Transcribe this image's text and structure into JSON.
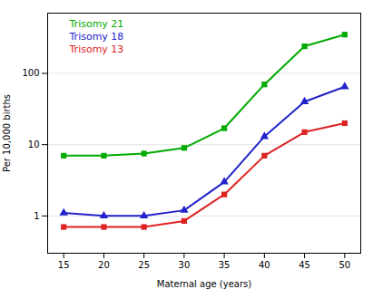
{
  "chart_data": {
    "type": "line",
    "x": [
      15,
      20,
      25,
      30,
      35,
      40,
      45,
      50
    ],
    "series": [
      {
        "name": "Trisomy 21",
        "color": "#00aa00",
        "marker": "square",
        "values": [
          7,
          7,
          7.5,
          9,
          17,
          70,
          240,
          350
        ]
      },
      {
        "name": "Trisomy 18",
        "color": "#2222cc",
        "marker": "triangle",
        "values": [
          1.1,
          1.0,
          1.0,
          1.2,
          3.0,
          13,
          40,
          65
        ]
      },
      {
        "name": "Trisomy 13",
        "color": "#dd2222",
        "marker": "square",
        "values": [
          0.7,
          0.7,
          0.7,
          0.85,
          2.0,
          7,
          15,
          20
        ]
      }
    ],
    "xlabel": "Maternal age (years)",
    "ylabel": "Per 10,000 births",
    "xlim": [
      13,
      52
    ],
    "ylim": [
      0.3,
      700
    ],
    "xticks": [
      15,
      20,
      25,
      30,
      35,
      40,
      45,
      50
    ],
    "yticks": [
      1,
      10,
      100
    ],
    "log": "y",
    "grid": "y",
    "legend": "upper left"
  }
}
